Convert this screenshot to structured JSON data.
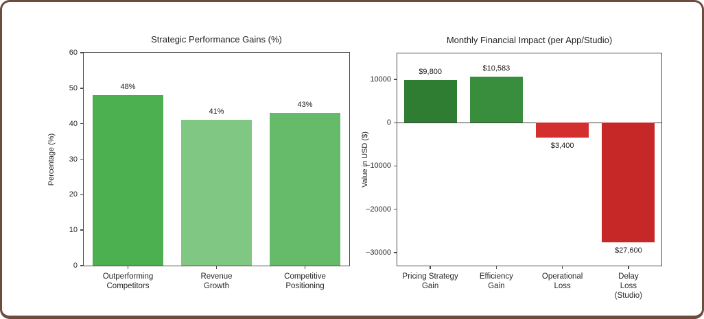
{
  "frame": {
    "border_color": "#6F4B3E",
    "background": "#ffffff"
  },
  "chart_data": [
    {
      "type": "bar",
      "title": "Strategic Performance Gains (%)",
      "xlabel": "",
      "ylabel": "Percentage (%)",
      "categories": [
        "Outperforming\nCompetitors",
        "Revenue\nGrowth",
        "Competitive\nPositioning"
      ],
      "values": [
        48,
        41,
        43
      ],
      "value_labels": [
        "48%",
        "41%",
        "43%"
      ],
      "bar_colors": [
        "#4CAF50",
        "#81C784",
        "#66BB6A"
      ],
      "ylim": [
        0,
        60
      ],
      "yticks": [
        {
          "value": 0,
          "label": "0"
        },
        {
          "value": 10,
          "label": "10"
        },
        {
          "value": 20,
          "label": "20"
        },
        {
          "value": 30,
          "label": "30"
        },
        {
          "value": 40,
          "label": "40"
        },
        {
          "value": 50,
          "label": "50"
        },
        {
          "value": 60,
          "label": "60"
        }
      ],
      "grid": false,
      "legend": "none",
      "zero_line": false
    },
    {
      "type": "bar",
      "title": "Monthly Financial Impact (per App/Studio)",
      "xlabel": "",
      "ylabel": "Value in USD ($)",
      "categories": [
        "Pricing Strategy\nGain",
        "Efficiency\nGain",
        "Operational\nLoss",
        "Delay\nLoss (Studio)"
      ],
      "values": [
        9800,
        10583,
        -3400,
        -27600
      ],
      "value_labels": [
        "$9,800",
        "$10,583",
        "$3,400",
        "$27,600"
      ],
      "bar_colors": [
        "#2E7D32",
        "#388E3C",
        "#D32F2F",
        "#C62828"
      ],
      "ylim": [
        -33000,
        16000
      ],
      "yticks": [
        {
          "value": 10000,
          "label": "10000"
        },
        {
          "value": 0,
          "label": "0"
        },
        {
          "value": -10000,
          "label": "−10000"
        },
        {
          "value": -20000,
          "label": "−20000"
        },
        {
          "value": -30000,
          "label": "−30000"
        }
      ],
      "grid": false,
      "legend": "none",
      "zero_line": true
    }
  ]
}
